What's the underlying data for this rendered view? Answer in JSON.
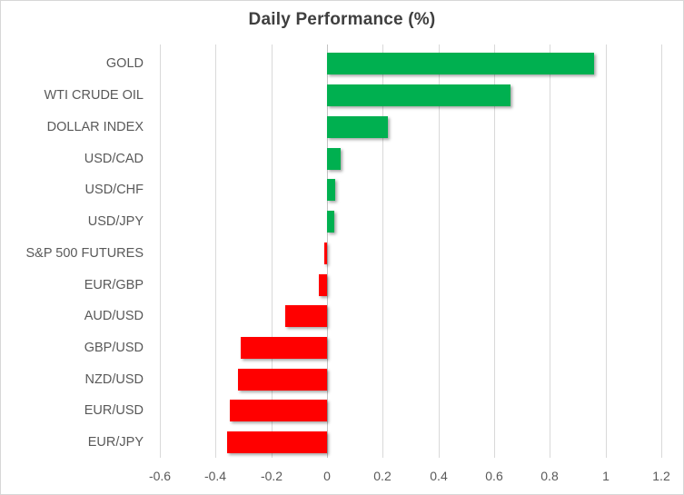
{
  "chart_data": {
    "type": "bar",
    "orientation": "horizontal",
    "title": "Daily Performance (%)",
    "categories": [
      "GOLD",
      "WTI CRUDE OIL",
      "DOLLAR INDEX",
      "USD/CAD",
      "USD/CHF",
      "USD/JPY",
      "S&P 500 FUTURES",
      "EUR/GBP",
      "AUD/USD",
      "GBP/USD",
      "NZD/USD",
      "EUR/USD",
      "EUR/JPY"
    ],
    "values": [
      0.96,
      0.66,
      0.22,
      0.05,
      0.03,
      0.025,
      -0.01,
      -0.03,
      -0.15,
      -0.31,
      -0.32,
      -0.35,
      -0.36
    ],
    "xlabel": "",
    "ylabel": "",
    "xlim": [
      -0.6,
      1.2
    ],
    "x_tick_values": [
      -0.6,
      -0.4,
      -0.2,
      0,
      0.2,
      0.4,
      0.6,
      0.8,
      1,
      1.2
    ],
    "x_tick_labels": [
      "-0.6",
      "-0.4",
      "-0.2",
      "0",
      "0.2",
      "0.4",
      "0.6",
      "0.8",
      "1",
      "1.2"
    ],
    "grid": "vertical-on",
    "legend": "none",
    "colors": {
      "positive_bar": "#00B050",
      "negative_bar": "#FF0000",
      "gridline": "#D9D9D9",
      "zero_axis": "#C3C3C3",
      "title_text": "#3F3F3F",
      "label_text": "#595959"
    }
  }
}
